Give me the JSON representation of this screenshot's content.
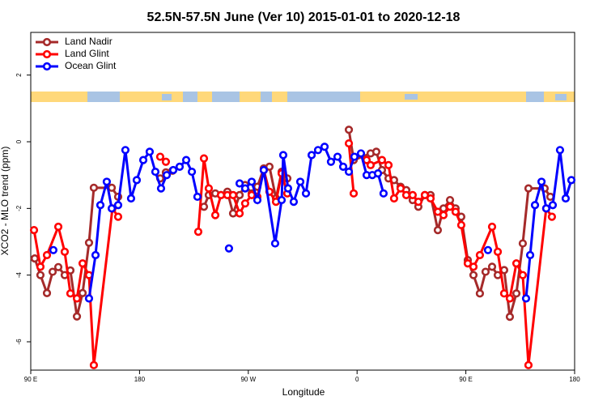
{
  "chart_data": {
    "type": "line",
    "title": "52.5N-57.5N June (Ver 10)   2015-01-01 to 2020-12-18",
    "x_label": "Longitude",
    "y_label": "XCO2 - MLO trend (ppm)",
    "xlim": [
      90,
      540
    ],
    "ylim": [
      -6.85,
      3.28
    ],
    "xticks": [
      {
        "value": 90,
        "label": "90 E"
      },
      180,
      {
        "value": 270,
        "label": "90 W"
      },
      {
        "value": 360,
        "label": "0"
      },
      {
        "value": 450,
        "label": "90 E"
      },
      {
        "value": 540,
        "label": "180"
      }
    ],
    "yticks": [
      -6,
      -4,
      -2,
      0,
      2
    ],
    "legend": "top-left",
    "series": [
      {
        "name": "Land Nadir",
        "color": "#a52a2a",
        "x": [
          93.3,
          98,
          103.4,
          108.1,
          112.8,
          118.1,
          122.8,
          128.2,
          132.9,
          138.2,
          142.2,
          157,
          162.3,
          180,
          197.1,
          201.8,
          207.2,
          220,
          233.3,
          237.3,
          242.7,
          247.4,
          252.7,
          257.4,
          262.8,
          267.4,
          272.8,
          277.5,
          282.8,
          287.5,
          292.9,
          297.6,
          302.3,
          330,
          353.2,
          357.2,
          371.2,
          375.9,
          380.6,
          386,
          390.6,
          396,
          400.7,
          406,
          410.7,
          416.1,
          420.8,
          426.8,
          431.5,
          436.9,
          441.5,
          446.2,
          451.6,
          456.3,
          461.6,
          466.3,
          471.7,
          476.4,
          481.7,
          486.4,
          491.8,
          497.1,
          501.8,
          515.2,
          519.9
        ],
        "values": [
          -3.5,
          -4.0,
          -4.54,
          -3.9,
          -3.76,
          -4.0,
          -3.86,
          -5.24,
          -4.54,
          -3.03,
          -1.38,
          -1.38,
          -1.65,
          null,
          -1.1,
          -0.92,
          -0.87,
          null,
          -1.95,
          -1.6,
          -1.55,
          -1.6,
          -1.5,
          -2.15,
          -1.6,
          -1.3,
          -1.55,
          -1.35,
          -0.8,
          -0.75,
          -1.7,
          -0.9,
          -1.1,
          null,
          0.36,
          -0.55,
          -0.35,
          -0.3,
          -0.85,
          -1.1,
          -1.15,
          -1.35,
          -1.45,
          -1.75,
          -1.95,
          -1.6,
          -1.6,
          -2.65,
          -2.0,
          -1.75,
          -2.0,
          -2.25,
          -3.55,
          -4.0,
          -4.55,
          -3.9,
          -3.75,
          -4.0,
          -3.85,
          -5.25,
          -4.55,
          -3.05,
          -1.4,
          -1.4,
          -1.65
        ]
      },
      {
        "name": "Land Glint",
        "color": "#ff0000",
        "x": [
          92.7,
          98,
          103.4,
          112.8,
          118.1,
          122.8,
          128.2,
          132.9,
          138.2,
          142.2,
          157.6,
          162.3,
          180,
          197.1,
          201.8,
          215,
          228.6,
          233.3,
          237.3,
          242.7,
          247.4,
          252.7,
          257.4,
          262.8,
          267.4,
          272.8,
          277.5,
          282.8,
          287.5,
          292.9,
          297.6,
          302.3,
          330,
          353.2,
          357.2,
          362,
          367.9,
          371.2,
          380.6,
          386,
          390.6,
          396,
          400.7,
          406,
          410.7,
          416.1,
          420.8,
          426.8,
          431.5,
          436.9,
          441.5,
          446.2,
          451.6,
          456.3,
          461.6,
          471.7,
          476.4,
          481.7,
          486.4,
          491.8,
          497.1,
          501.8,
          516.5,
          521.2
        ],
        "values": [
          -2.65,
          -3.75,
          -3.4,
          -2.55,
          -3.3,
          -4.55,
          -4.7,
          -3.65,
          -4.0,
          -6.7,
          -2.0,
          -2.25,
          null,
          -0.45,
          -0.6,
          null,
          -2.7,
          -0.5,
          -1.4,
          -2.2,
          -1.6,
          -1.6,
          -1.6,
          -2.15,
          -1.85,
          -1.6,
          -1.65,
          -0.85,
          -1.5,
          -1.8,
          -0.95,
          -1.55,
          null,
          -0.05,
          -1.55,
          null,
          -0.55,
          -0.7,
          -0.55,
          -0.7,
          -1.7,
          -1.4,
          -1.6,
          -1.6,
          -1.8,
          -1.6,
          -1.7,
          -2.1,
          -2.2,
          -1.95,
          -2.1,
          -2.5,
          -3.65,
          -3.75,
          -3.4,
          -2.55,
          -3.3,
          -4.55,
          -4.7,
          -3.65,
          -4.0,
          -6.7,
          -2.0,
          -2.25
        ]
      },
      {
        "name": "Ocean Glint",
        "color": "#0000ff",
        "x": [
          108.7,
          120,
          138.2,
          143.6,
          147.6,
          152.9,
          157,
          162.3,
          168.3,
          173,
          177.7,
          183.1,
          188.4,
          193.1,
          197.8,
          202.5,
          207.9,
          213.2,
          218.6,
          223.3,
          227.9,
          240,
          254,
          258,
          262.8,
          267.4,
          272.8,
          277.5,
          282.8,
          292.2,
          297.6,
          298.9,
          302.9,
          307.6,
          313,
          317.7,
          322.4,
          327.7,
          333.1,
          338.4,
          343.8,
          348.5,
          353.2,
          357.8,
          363.2,
          367.9,
          372.6,
          377.3,
          381.9,
          420,
          468.3,
          480,
          499.8,
          503.2,
          507.2,
          512.6,
          516.5,
          521.9,
          527.9,
          532.6,
          537.3
        ],
        "values": [
          -3.25,
          null,
          -4.7,
          -3.4,
          -1.9,
          -1.2,
          -2.0,
          -1.9,
          -0.25,
          -1.7,
          -1.15,
          -0.55,
          -0.3,
          -0.9,
          -1.4,
          -1.0,
          -0.85,
          -0.75,
          -0.55,
          -0.9,
          -1.65,
          null,
          -3.2,
          null,
          -1.25,
          -1.4,
          -1.2,
          -1.75,
          -0.85,
          -3.05,
          -1.75,
          -0.4,
          -1.4,
          -1.8,
          -1.2,
          -1.55,
          -0.4,
          -0.25,
          -0.15,
          -0.6,
          -0.45,
          -0.75,
          -0.9,
          -0.45,
          -0.35,
          -1.0,
          -1.0,
          -0.95,
          -1.55,
          null,
          -3.25,
          null,
          -4.7,
          -3.4,
          -1.9,
          -1.2,
          -2.0,
          -1.9,
          -0.25,
          -1.7,
          -1.15
        ]
      }
    ]
  }
}
